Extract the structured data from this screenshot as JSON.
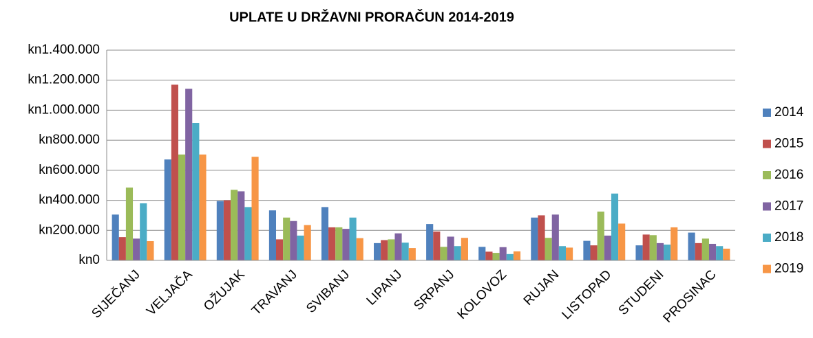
{
  "chart_data": {
    "type": "bar",
    "title": "UPLATE U DRŽAVNI PRORAČUN 2014-2019",
    "categories": [
      "SIJEČANJ",
      "VELJAČA",
      "OŽUJAK",
      "TRAVANJ",
      "SVIBANJ",
      "LIPANJ",
      "SRPANJ",
      "KOLOVOZ",
      "RUJAN",
      "LISTOPAD",
      "STUDENI",
      "PROSINAC"
    ],
    "series": [
      {
        "name": "2014",
        "color": "#4f81bd",
        "values": [
          305000,
          672000,
          395000,
          333000,
          355000,
          115000,
          242000,
          90000,
          285000,
          130000,
          100000,
          185000
        ]
      },
      {
        "name": "2015",
        "color": "#c0504d",
        "values": [
          155000,
          1170000,
          400000,
          140000,
          220000,
          135000,
          192000,
          58000,
          300000,
          100000,
          172000,
          115000
        ]
      },
      {
        "name": "2016",
        "color": "#9bbb59",
        "values": [
          485000,
          705000,
          470000,
          285000,
          220000,
          140000,
          90000,
          50000,
          150000,
          325000,
          168000,
          145000
        ]
      },
      {
        "name": "2017",
        "color": "#8064a2",
        "values": [
          145000,
          1143000,
          460000,
          262000,
          210000,
          180000,
          158000,
          88000,
          305000,
          165000,
          115000,
          110000
        ]
      },
      {
        "name": "2018",
        "color": "#4bacc6",
        "values": [
          380000,
          915000,
          355000,
          165000,
          285000,
          118000,
          95000,
          42000,
          95000,
          445000,
          105000,
          95000
        ]
      },
      {
        "name": "2019",
        "color": "#f79646",
        "values": [
          128000,
          705000,
          690000,
          235000,
          148000,
          82000,
          150000,
          60000,
          85000,
          245000,
          220000,
          78000
        ]
      }
    ],
    "ylim": [
      0,
      1400000
    ],
    "yticks": [
      {
        "value": 0,
        "label": "kn0"
      },
      {
        "value": 200000,
        "label": "kn200.000"
      },
      {
        "value": 400000,
        "label": "kn400.000"
      },
      {
        "value": 600000,
        "label": "kn600.000"
      },
      {
        "value": 800000,
        "label": "kn800.000"
      },
      {
        "value": 1000000,
        "label": "kn1.000.000"
      },
      {
        "value": 1200000,
        "label": "kn1.200.000"
      },
      {
        "value": 1400000,
        "label": "kn1.400.000"
      }
    ],
    "grid": true,
    "legend": "right"
  }
}
